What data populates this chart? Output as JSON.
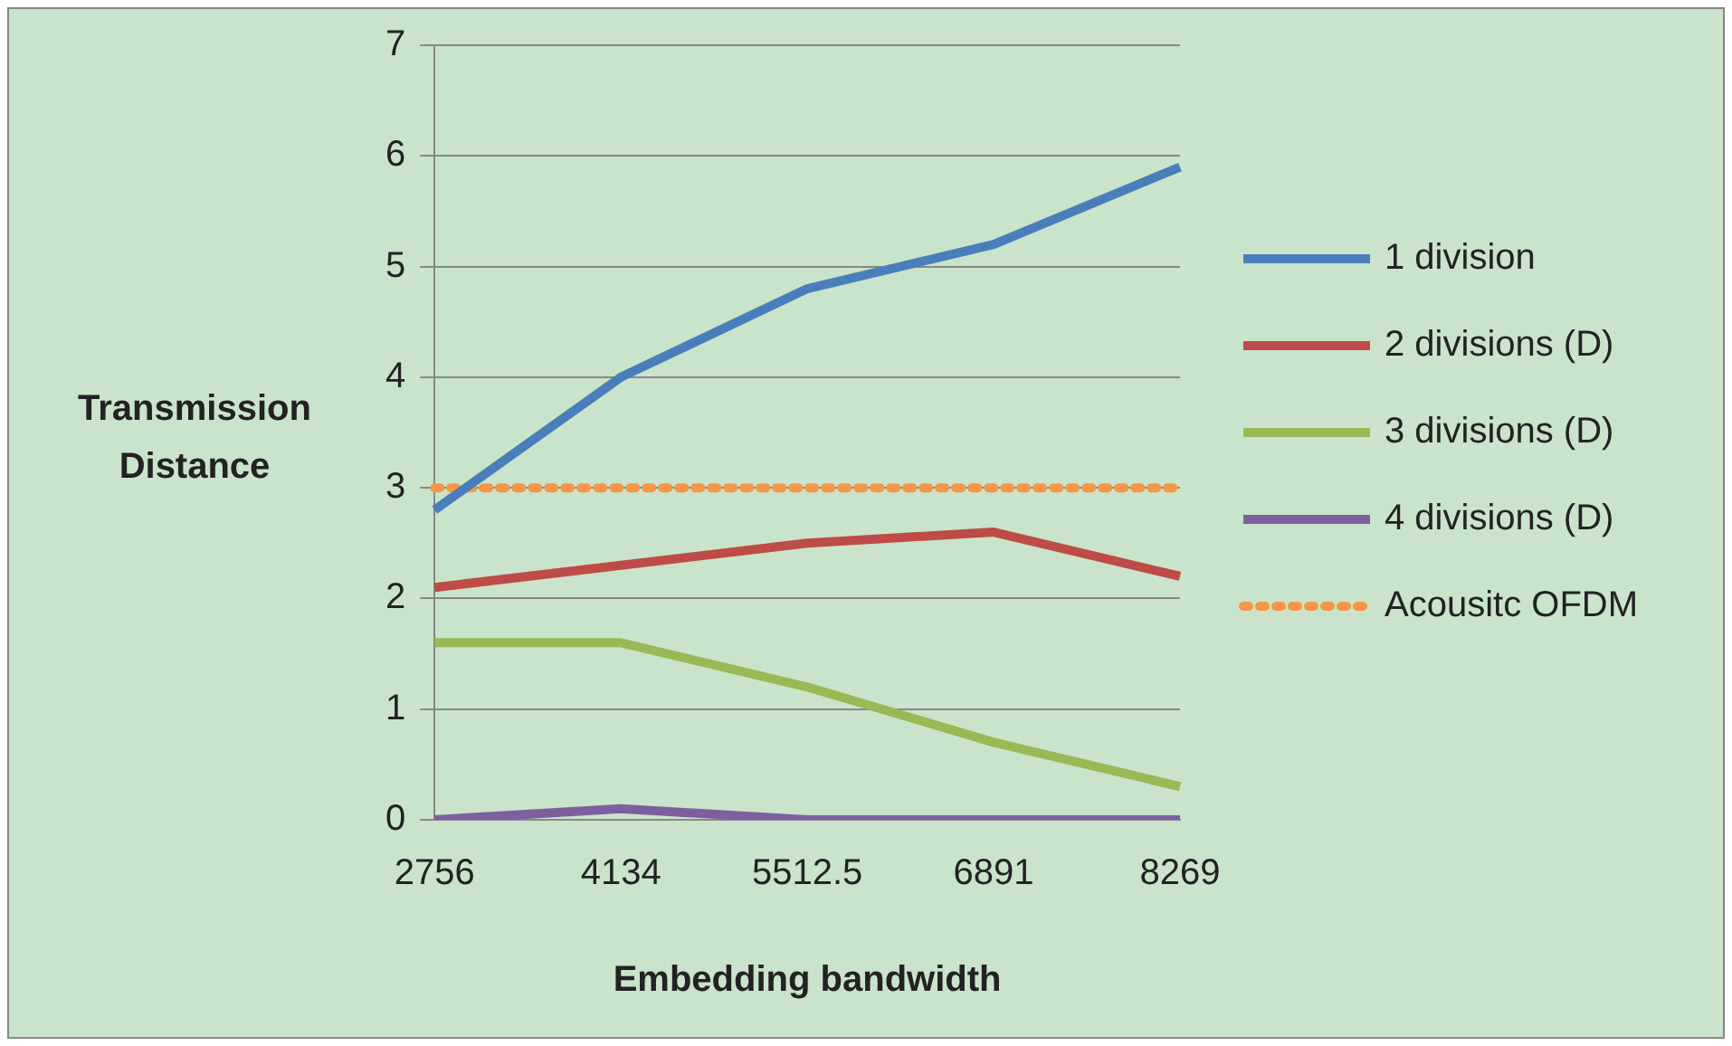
{
  "chart_data": {
    "type": "line",
    "xlabel": "Embedding bandwidth",
    "ylabel": "Transmission Distance",
    "categories": [
      "2756",
      "4134",
      "5512.5",
      "6891",
      "8269"
    ],
    "ylim": [
      0,
      7
    ],
    "yticks": [
      0,
      1,
      2,
      3,
      4,
      5,
      6,
      7
    ],
    "grid": "y",
    "legend": "right",
    "marker": "none",
    "series": [
      {
        "name": "1 division",
        "color": "#4a7ebb",
        "values": [
          2.8,
          4.0,
          4.8,
          5.2,
          5.9
        ]
      },
      {
        "name": "2 divisions (D)",
        "color": "#be4b48",
        "values": [
          2.1,
          2.3,
          2.5,
          2.6,
          2.2
        ]
      },
      {
        "name": "3 divisions (D)",
        "color": "#98b954",
        "values": [
          1.6,
          1.6,
          1.2,
          0.7,
          0.3
        ]
      },
      {
        "name": "4 divisions (D)",
        "color": "#7d5fa0",
        "values": [
          0,
          0.1,
          0,
          0,
          0
        ]
      },
      {
        "name": "Acousitc OFDM",
        "color": "#f79646",
        "line_style": "dotted",
        "values": [
          3,
          3,
          3,
          3,
          3
        ]
      }
    ]
  }
}
